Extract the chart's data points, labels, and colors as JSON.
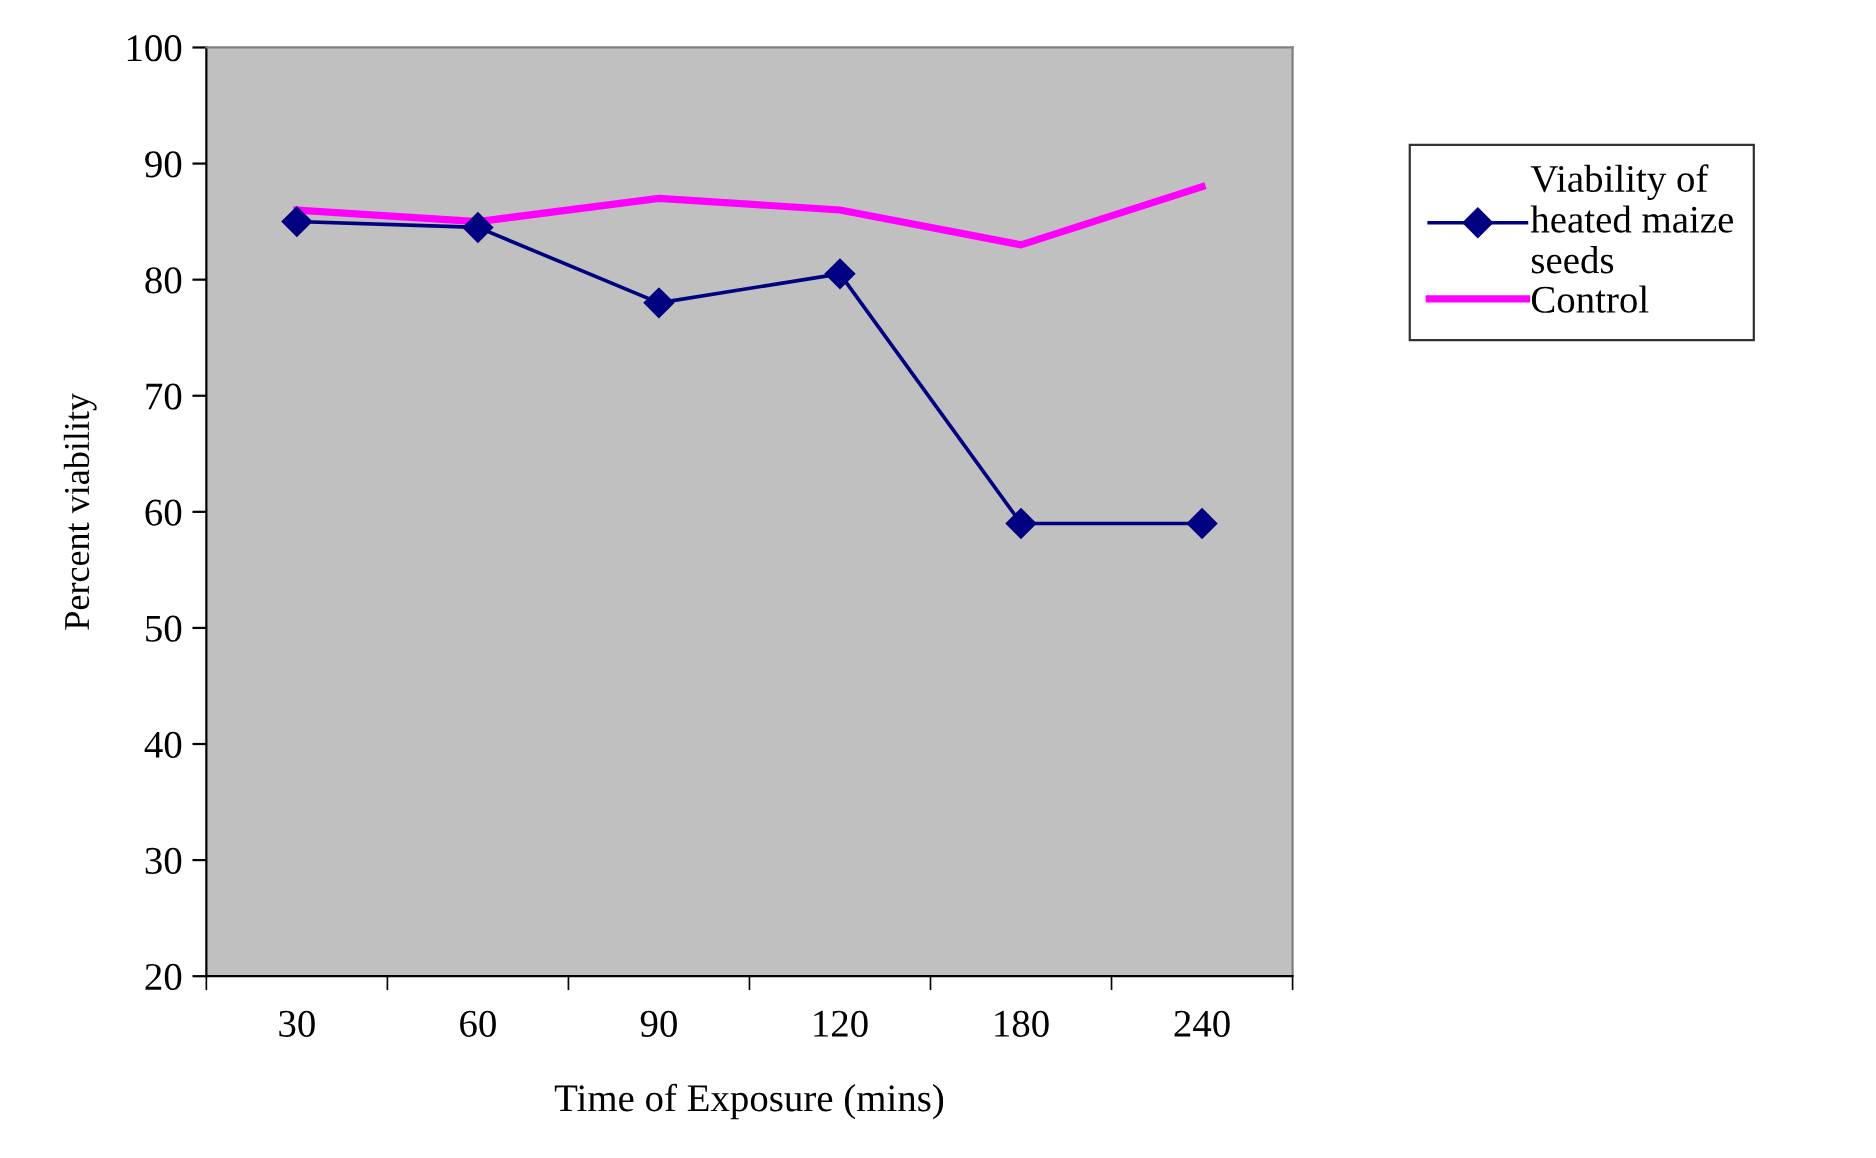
{
  "chart_data": {
    "type": "line",
    "xlabel": "Time of Exposure (mins)",
    "ylabel": "Percent viability",
    "categories": [
      "30",
      "60",
      "90",
      "120",
      "180",
      "240"
    ],
    "series": [
      {
        "name": "Viability of\nheated maize\nseeds",
        "color": "#000080",
        "marker": "diamond",
        "values": [
          85,
          84.5,
          78,
          80.5,
          59,
          59
        ]
      },
      {
        "name": "Control",
        "color": "#ff00ff",
        "marker": "none",
        "values": [
          86,
          85,
          87,
          86,
          83,
          88
        ]
      }
    ],
    "ylim": [
      20,
      100
    ],
    "yticks": [
      20,
      30,
      40,
      50,
      60,
      70,
      80,
      90,
      100
    ],
    "grid": false,
    "legend": "right",
    "line_style": "solid"
  }
}
